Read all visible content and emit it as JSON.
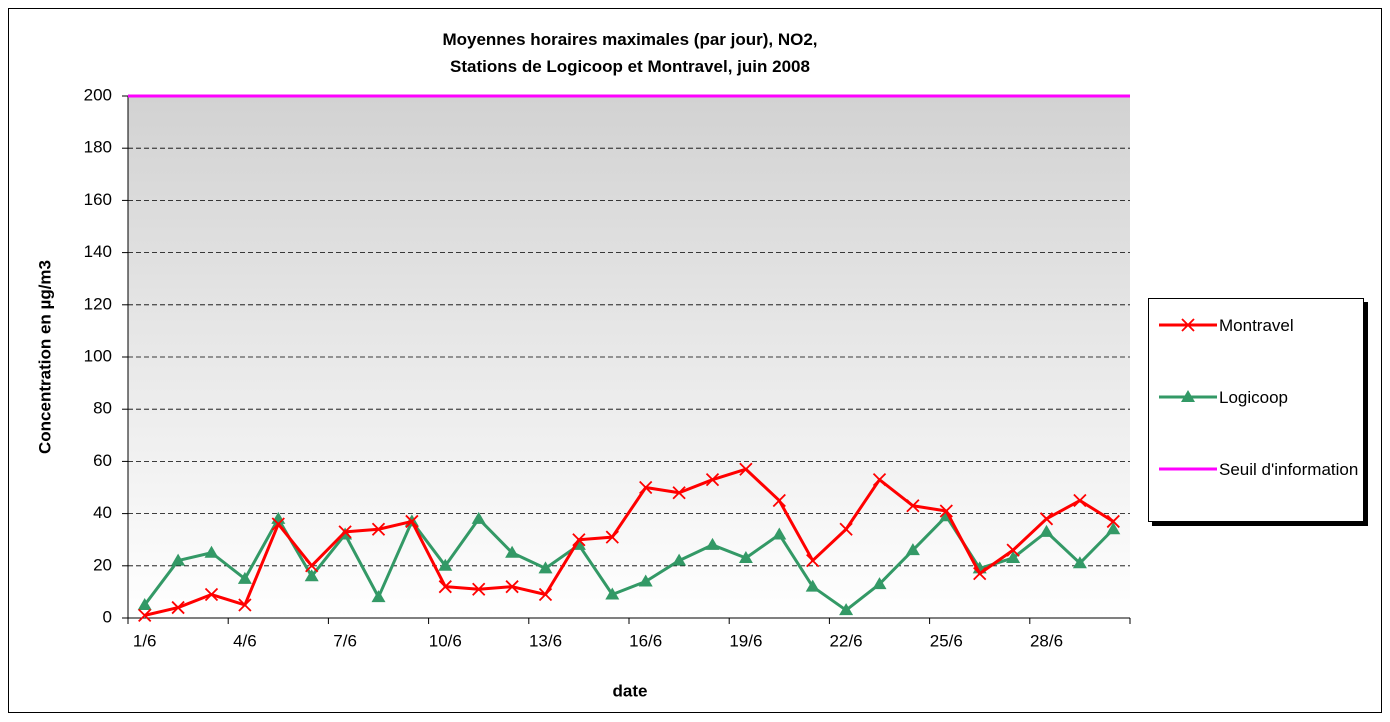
{
  "chart_data": {
    "type": "line",
    "title": "Moyennes horaires maximales (par jour), NO2,\nStations de Logicoop et Montravel, juin 2008",
    "x_label": "date",
    "y_label": "Concentration en µg/m3",
    "categories": [
      "1/6",
      null,
      null,
      "4/6",
      null,
      null,
      "7/6",
      null,
      null,
      "10/6",
      null,
      null,
      "13/6",
      null,
      null,
      "16/6",
      null,
      null,
      "19/6",
      null,
      null,
      "22/6",
      null,
      null,
      "25/6",
      null,
      null,
      "28/6",
      null,
      null
    ],
    "series": [
      {
        "name": "Montravel",
        "color": "#ff0000",
        "marker": "x",
        "values": [
          1,
          4,
          9,
          5,
          36,
          20,
          33,
          34,
          37,
          12,
          11,
          12,
          9,
          30,
          31,
          50,
          48,
          53,
          57,
          45,
          22,
          34,
          53,
          43,
          41,
          17,
          26,
          38,
          45,
          37
        ]
      },
      {
        "name": "Logicoop",
        "color": "#339966",
        "marker": "triangle",
        "values": [
          5,
          22,
          25,
          15,
          38,
          16,
          32,
          8,
          37,
          20,
          38,
          25,
          19,
          28,
          9,
          14,
          22,
          28,
          23,
          32,
          12,
          3,
          13,
          26,
          39,
          19,
          23,
          33,
          21,
          34
        ]
      }
    ],
    "threshold": {
      "name": "Seuil d'information",
      "color": "#ff00ff",
      "value": 200
    },
    "ylim": [
      0,
      200
    ],
    "yticks": [
      0,
      20,
      40,
      60,
      80,
      100,
      120,
      140,
      160,
      180,
      200
    ],
    "grid": true,
    "legend": "right"
  }
}
